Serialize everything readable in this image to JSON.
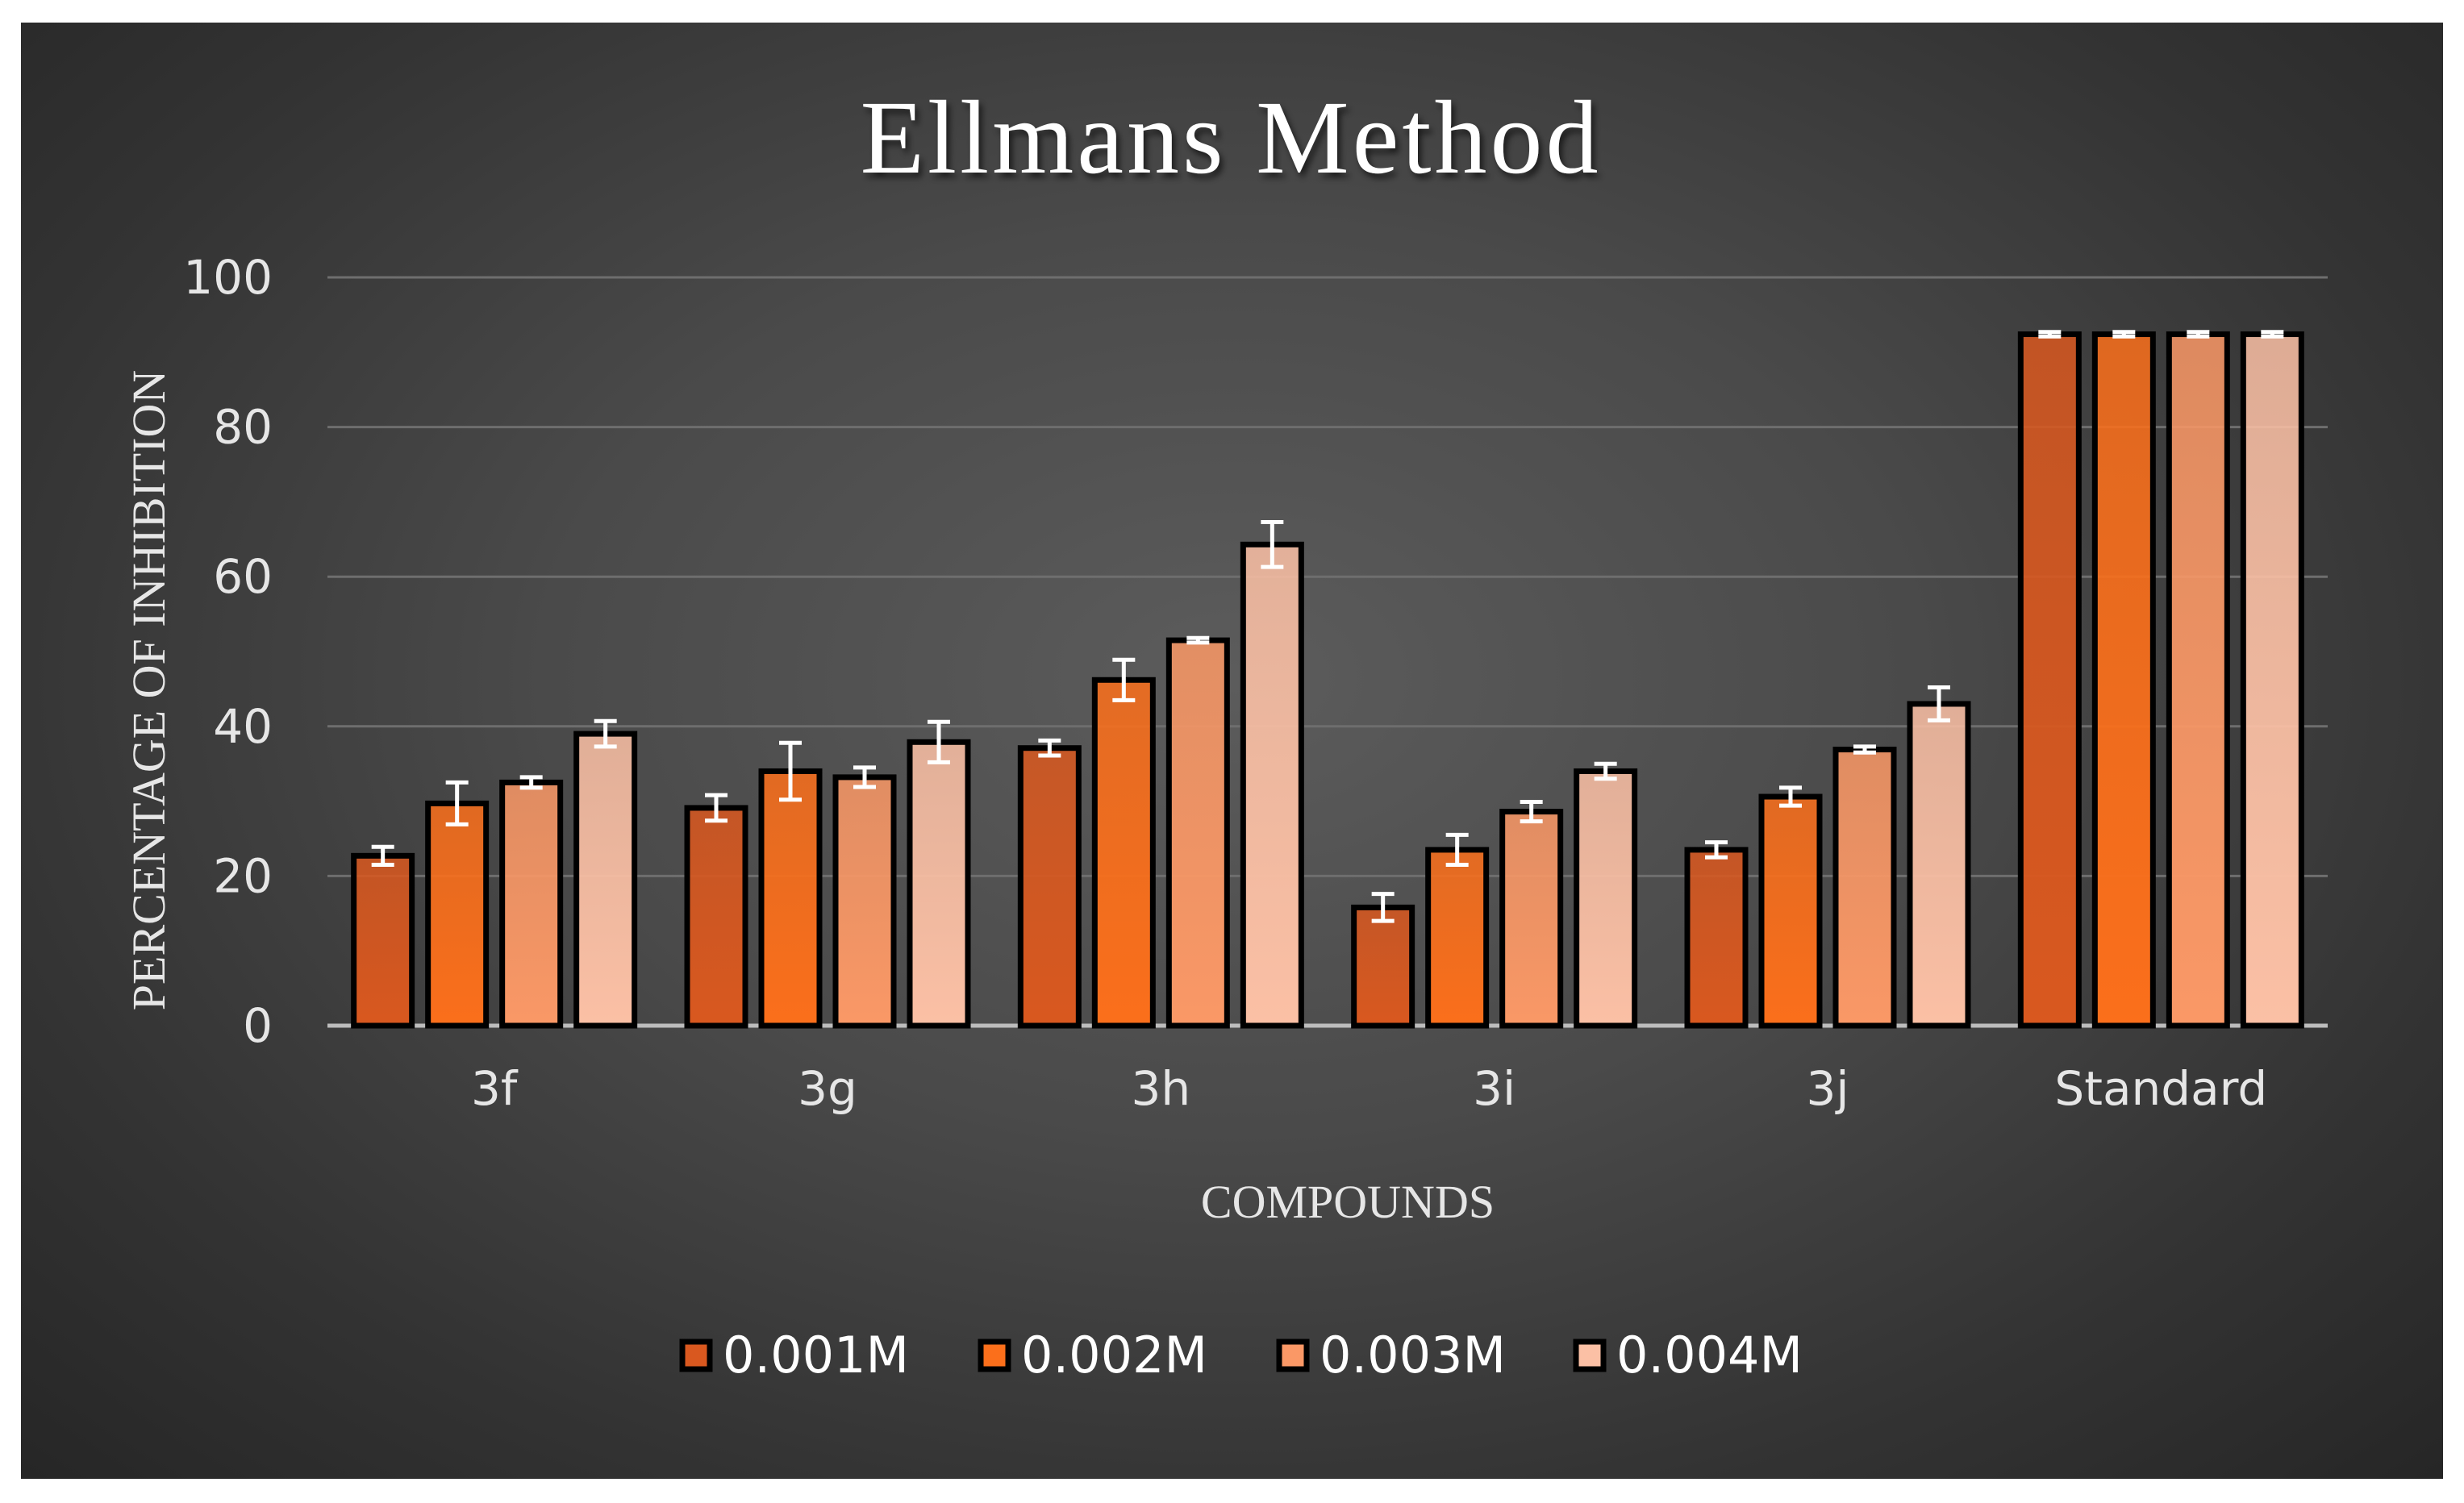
{
  "chart_data": {
    "type": "bar",
    "title": "Ellmans Method",
    "xlabel": "COMPOUNDS",
    "ylabel": "PERCENTAGE OF INHIBITION",
    "ylim": [
      0,
      100
    ],
    "yticks": [
      "0",
      "20",
      "40",
      "60",
      "80",
      "100"
    ],
    "grid": true,
    "legend_position": "bottom",
    "categories": [
      "3f",
      "3g",
      "3h",
      "3i",
      "3j",
      "Standard"
    ],
    "series": [
      {
        "name": "0.001M",
        "color": "#d9581f",
        "values": [
          22.7,
          29.1,
          37.1,
          15.8,
          23.5,
          92.4
        ],
        "errors": [
          1.2,
          1.7,
          1.0,
          1.8,
          1.0,
          0.3
        ]
      },
      {
        "name": "0.002M",
        "color": "#fb6f1b",
        "values": [
          29.7,
          34.0,
          46.2,
          23.5,
          30.6,
          92.4
        ],
        "errors": [
          2.8,
          3.8,
          2.7,
          2.0,
          1.2,
          0.3
        ]
      },
      {
        "name": "0.003M",
        "color": "#fa9866",
        "values": [
          32.5,
          33.2,
          51.5,
          28.6,
          36.9,
          92.4
        ],
        "errors": [
          0.7,
          1.3,
          0.3,
          1.3,
          0.4,
          0.3
        ]
      },
      {
        "name": "0.004M",
        "color": "#fbc0a5",
        "values": [
          39.0,
          37.9,
          64.3,
          34.0,
          43.0,
          92.4
        ],
        "errors": [
          1.7,
          2.7,
          3.0,
          1.0,
          2.2,
          0.3
        ]
      }
    ]
  }
}
